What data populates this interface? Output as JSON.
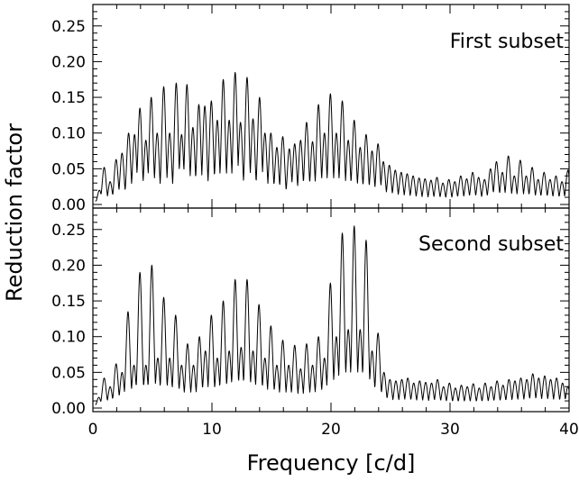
{
  "chart_data": {
    "type": "line",
    "xlabel": "Frequency [c/d]",
    "ylabel": "Reduction factor",
    "xlim": [
      0,
      40
    ],
    "x_ticks": [
      "0",
      "10",
      "20",
      "30",
      "40"
    ],
    "panels": [
      {
        "label": "First subset",
        "ylim": [
          0,
          0.28
        ],
        "y_ticks": [
          "0.00",
          "0.05",
          "0.10",
          "0.15",
          "0.20",
          "0.25"
        ],
        "peaks": [
          [
            0.55,
            0.02
          ],
          [
            0.95,
            0.052
          ],
          [
            1.45,
            0.032
          ],
          [
            1.95,
            0.063
          ],
          [
            2.45,
            0.072
          ],
          [
            3.0,
            0.1
          ],
          [
            3.5,
            0.098
          ],
          [
            3.95,
            0.135
          ],
          [
            4.45,
            0.09
          ],
          [
            4.9,
            0.15
          ],
          [
            5.4,
            0.1
          ],
          [
            5.95,
            0.165
          ],
          [
            6.45,
            0.1
          ],
          [
            7.0,
            0.17
          ],
          [
            7.45,
            0.098
          ],
          [
            7.9,
            0.168
          ],
          [
            8.4,
            0.108
          ],
          [
            8.9,
            0.14
          ],
          [
            9.4,
            0.138
          ],
          [
            9.95,
            0.145
          ],
          [
            10.45,
            0.118
          ],
          [
            10.95,
            0.175
          ],
          [
            11.45,
            0.118
          ],
          [
            11.95,
            0.185
          ],
          [
            12.4,
            0.115
          ],
          [
            12.95,
            0.178
          ],
          [
            13.45,
            0.12
          ],
          [
            14.0,
            0.15
          ],
          [
            14.45,
            0.1
          ],
          [
            14.95,
            0.1
          ],
          [
            15.45,
            0.08
          ],
          [
            15.95,
            0.095
          ],
          [
            16.5,
            0.078
          ],
          [
            16.95,
            0.085
          ],
          [
            17.45,
            0.09
          ],
          [
            17.95,
            0.115
          ],
          [
            18.45,
            0.088
          ],
          [
            18.95,
            0.14
          ],
          [
            19.45,
            0.1
          ],
          [
            19.95,
            0.155
          ],
          [
            20.45,
            0.1
          ],
          [
            20.95,
            0.145
          ],
          [
            21.45,
            0.09
          ],
          [
            21.95,
            0.118
          ],
          [
            22.45,
            0.08
          ],
          [
            22.95,
            0.098
          ],
          [
            23.45,
            0.075
          ],
          [
            23.95,
            0.085
          ],
          [
            24.4,
            0.06
          ],
          [
            24.9,
            0.055
          ],
          [
            25.4,
            0.048
          ],
          [
            25.9,
            0.045
          ],
          [
            26.4,
            0.043
          ],
          [
            26.9,
            0.04
          ],
          [
            27.4,
            0.037
          ],
          [
            27.9,
            0.036
          ],
          [
            28.4,
            0.034
          ],
          [
            28.9,
            0.038
          ],
          [
            29.4,
            0.03
          ],
          [
            29.9,
            0.035
          ],
          [
            30.4,
            0.032
          ],
          [
            30.9,
            0.04
          ],
          [
            31.4,
            0.036
          ],
          [
            31.9,
            0.045
          ],
          [
            32.4,
            0.038
          ],
          [
            32.9,
            0.035
          ],
          [
            33.4,
            0.05
          ],
          [
            33.9,
            0.06
          ],
          [
            34.4,
            0.045
          ],
          [
            34.9,
            0.068
          ],
          [
            35.4,
            0.04
          ],
          [
            35.9,
            0.062
          ],
          [
            36.4,
            0.04
          ],
          [
            36.9,
            0.052
          ],
          [
            37.4,
            0.035
          ],
          [
            37.9,
            0.045
          ],
          [
            38.4,
            0.035
          ],
          [
            38.9,
            0.04
          ],
          [
            39.4,
            0.032
          ],
          [
            39.9,
            0.048
          ]
        ]
      },
      {
        "label": "Second subset",
        "ylim": [
          0,
          0.28
        ],
        "y_ticks": [
          "0.00",
          "0.05",
          "0.10",
          "0.15",
          "0.20",
          "0.25"
        ],
        "peaks": [
          [
            0.5,
            0.015
          ],
          [
            0.95,
            0.042
          ],
          [
            1.45,
            0.03
          ],
          [
            1.95,
            0.062
          ],
          [
            2.45,
            0.05
          ],
          [
            2.95,
            0.135
          ],
          [
            3.45,
            0.06
          ],
          [
            3.95,
            0.19
          ],
          [
            4.45,
            0.06
          ],
          [
            4.95,
            0.2
          ],
          [
            5.45,
            0.07
          ],
          [
            5.95,
            0.155
          ],
          [
            6.45,
            0.07
          ],
          [
            6.95,
            0.13
          ],
          [
            7.45,
            0.06
          ],
          [
            7.95,
            0.09
          ],
          [
            8.45,
            0.06
          ],
          [
            8.95,
            0.1
          ],
          [
            9.45,
            0.08
          ],
          [
            9.95,
            0.13
          ],
          [
            10.45,
            0.07
          ],
          [
            10.95,
            0.15
          ],
          [
            11.45,
            0.08
          ],
          [
            11.95,
            0.18
          ],
          [
            12.45,
            0.085
          ],
          [
            12.95,
            0.18
          ],
          [
            13.45,
            0.08
          ],
          [
            13.95,
            0.145
          ],
          [
            14.45,
            0.07
          ],
          [
            14.95,
            0.115
          ],
          [
            15.45,
            0.06
          ],
          [
            15.95,
            0.095
          ],
          [
            16.45,
            0.06
          ],
          [
            16.95,
            0.088
          ],
          [
            17.45,
            0.055
          ],
          [
            17.95,
            0.09
          ],
          [
            18.45,
            0.06
          ],
          [
            18.95,
            0.1
          ],
          [
            19.45,
            0.07
          ],
          [
            19.95,
            0.175
          ],
          [
            20.45,
            0.1
          ],
          [
            20.95,
            0.245
          ],
          [
            21.45,
            0.11
          ],
          [
            21.95,
            0.255
          ],
          [
            22.45,
            0.11
          ],
          [
            22.95,
            0.235
          ],
          [
            23.45,
            0.08
          ],
          [
            23.95,
            0.105
          ],
          [
            24.45,
            0.05
          ],
          [
            24.95,
            0.04
          ],
          [
            25.45,
            0.038
          ],
          [
            25.95,
            0.04
          ],
          [
            26.45,
            0.042
          ],
          [
            26.95,
            0.035
          ],
          [
            27.45,
            0.038
          ],
          [
            27.95,
            0.036
          ],
          [
            28.45,
            0.035
          ],
          [
            28.95,
            0.04
          ],
          [
            29.45,
            0.03
          ],
          [
            29.95,
            0.035
          ],
          [
            30.45,
            0.028
          ],
          [
            30.95,
            0.032
          ],
          [
            31.45,
            0.03
          ],
          [
            31.95,
            0.034
          ],
          [
            32.45,
            0.028
          ],
          [
            32.95,
            0.035
          ],
          [
            33.45,
            0.03
          ],
          [
            33.95,
            0.038
          ],
          [
            34.45,
            0.032
          ],
          [
            34.95,
            0.04
          ],
          [
            35.45,
            0.038
          ],
          [
            35.95,
            0.042
          ],
          [
            36.45,
            0.04
          ],
          [
            36.95,
            0.048
          ],
          [
            37.45,
            0.042
          ],
          [
            37.95,
            0.045
          ],
          [
            38.45,
            0.04
          ],
          [
            38.95,
            0.042
          ],
          [
            39.45,
            0.035
          ],
          [
            39.9,
            0.03
          ]
        ]
      }
    ],
    "grid": false,
    "legend": "none",
    "line_color": "#000000"
  }
}
